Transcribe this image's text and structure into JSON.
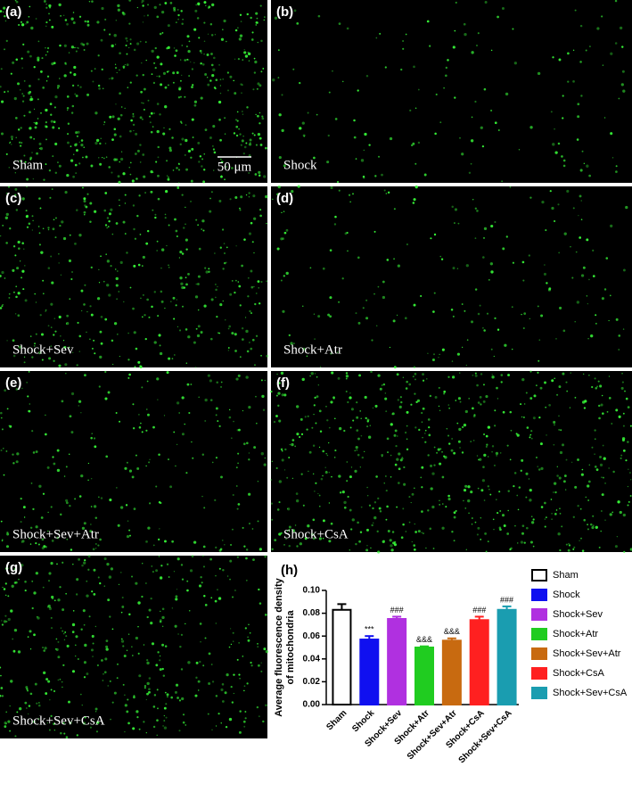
{
  "panels": [
    {
      "label": "(a)",
      "caption": "Sham"
    },
    {
      "label": "(b)",
      "caption": "Shock"
    },
    {
      "label": "(c)",
      "caption": "Shock+Sev"
    },
    {
      "label": "(d)",
      "caption": "Shock+Atr"
    },
    {
      "label": "(e)",
      "caption": "Shock+Sev+Atr"
    },
    {
      "label": "(f)",
      "caption": "Shock+CsA"
    },
    {
      "label": "(g)",
      "caption": "Shock+Sev+CsA"
    }
  ],
  "scale_bar": "50 μm",
  "chart_data": {
    "type": "bar",
    "panel_label": "(h)",
    "y_label": [
      "Average fluorescence density",
      "of mitochondria"
    ],
    "categories": [
      "Sham",
      "Shock",
      "Shock+Sev",
      "Shock+Atr",
      "Shock+Sev+Atr",
      "Shock+CsA",
      "Shock+Sev+CsA"
    ],
    "values": [
      0.083,
      0.057,
      0.075,
      0.05,
      0.056,
      0.074,
      0.083
    ],
    "errors": [
      0.005,
      0.003,
      0.002,
      0.001,
      0.002,
      0.003,
      0.003
    ],
    "colors": [
      "#ffffff",
      "#1010f0",
      "#b030e0",
      "#20cc20",
      "#c86a10",
      "#ff2020",
      "#1a9db0"
    ],
    "annotations": [
      null,
      "***",
      "###",
      "&&&",
      "&&&",
      "###",
      "###"
    ],
    "ylim": [
      0,
      0.1
    ],
    "yticks": [
      {
        "value": 0,
        "label": "0.00"
      },
      {
        "value": 0.02,
        "label": "0.02"
      },
      {
        "value": 0.04,
        "label": "0.04"
      },
      {
        "value": 0.06,
        "label": "0.06"
      },
      {
        "value": 0.08,
        "label": "0.08"
      },
      {
        "value": 0.1,
        "label": "0.10"
      }
    ],
    "legend": "right",
    "grid": false
  }
}
